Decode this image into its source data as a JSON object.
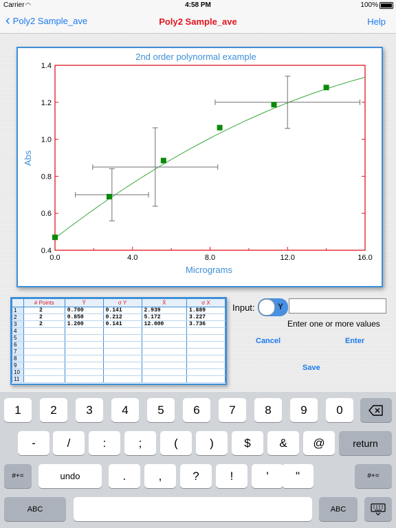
{
  "status_bar": {
    "carrier": "Carrier",
    "time": "4:58 PM",
    "battery": "100%"
  },
  "nav": {
    "back_label": "Poly2 Sample_ave",
    "title": "Poly2 Sample_ave",
    "help_label": "Help"
  },
  "chart_data": {
    "type": "scatter",
    "title": "2nd order polynormal example",
    "xlabel": "Micrograms",
    "ylabel": "Abs",
    "xlim": [
      0.0,
      16.0
    ],
    "ylim": [
      0.4,
      1.4
    ],
    "xticks": [
      "0.0",
      "4.0",
      "8.0",
      "12.0",
      "16.0"
    ],
    "yticks": [
      "0.4",
      "0.6",
      "0.8",
      "1.0",
      "1.2",
      "1.4"
    ],
    "points": [
      {
        "x": 0.0,
        "y": 0.47
      },
      {
        "x": 2.8,
        "y": 0.69
      },
      {
        "x": 5.6,
        "y": 0.885
      },
      {
        "x": 8.5,
        "y": 1.063
      },
      {
        "x": 11.3,
        "y": 1.187
      },
      {
        "x": 14.0,
        "y": 1.28
      }
    ],
    "error_bars": [
      {
        "x": 2.939,
        "y": 0.7,
        "sx": 1.889,
        "sy": 0.141
      },
      {
        "x": 5.172,
        "y": 0.85,
        "sx": 3.227,
        "sy": 0.212
      },
      {
        "x": 12.0,
        "y": 1.2,
        "sx": 3.736,
        "sy": 0.141
      }
    ],
    "fit_curve": {
      "a": 0.465,
      "b": 0.0808,
      "c": -0.00165
    },
    "colors": {
      "frame": "#e0141e",
      "points": "#0a8a0a",
      "curve": "#3aa83a",
      "error": "#707070",
      "labels": "#3d8fd8"
    }
  },
  "table": {
    "headers": [
      "",
      "# Points",
      "Ȳ",
      "σ Y",
      "X̄",
      "σ X"
    ],
    "rows": [
      [
        "1",
        "2",
        "0.700",
        "0.141",
        "2.939",
        "1.889"
      ],
      [
        "2",
        "2",
        "0.850",
        "0.212",
        "5.172",
        "3.227"
      ],
      [
        "3",
        "2",
        "1.200",
        "0.141",
        "12.000",
        "3.736"
      ],
      [
        "4",
        "",
        "",
        "",
        "",
        ""
      ],
      [
        "5",
        "",
        "",
        "",
        "",
        ""
      ],
      [
        "6",
        "",
        "",
        "",
        "",
        ""
      ],
      [
        "7",
        "",
        "",
        "",
        "",
        ""
      ],
      [
        "8",
        "",
        "",
        "",
        "",
        ""
      ],
      [
        "9",
        "",
        "",
        "",
        "",
        ""
      ],
      [
        "10",
        "",
        "",
        "",
        "",
        ""
      ],
      [
        "11",
        "",
        "",
        "",
        "",
        ""
      ]
    ]
  },
  "input_panel": {
    "label": "Input:",
    "toggle_value": "Y",
    "value": "",
    "hint": "Enter one or more values",
    "cancel_label": "Cancel",
    "enter_label": "Enter",
    "save_label": "Save"
  },
  "keyboard": {
    "row1": [
      "1",
      "2",
      "3",
      "4",
      "5",
      "6",
      "7",
      "8",
      "9",
      "0"
    ],
    "row2": [
      "-",
      "/",
      ":",
      ";",
      "(",
      ")",
      "$",
      "&",
      "@"
    ],
    "row3": [
      ".",
      ",",
      "?",
      "!",
      "'",
      "\""
    ],
    "backspace_icon": "backspace-icon",
    "return_label": "return",
    "shift_label": "#+=",
    "undo_label": "undo",
    "abc_label": "ABC",
    "keyboard_icon": "keyboard-hide-icon"
  }
}
